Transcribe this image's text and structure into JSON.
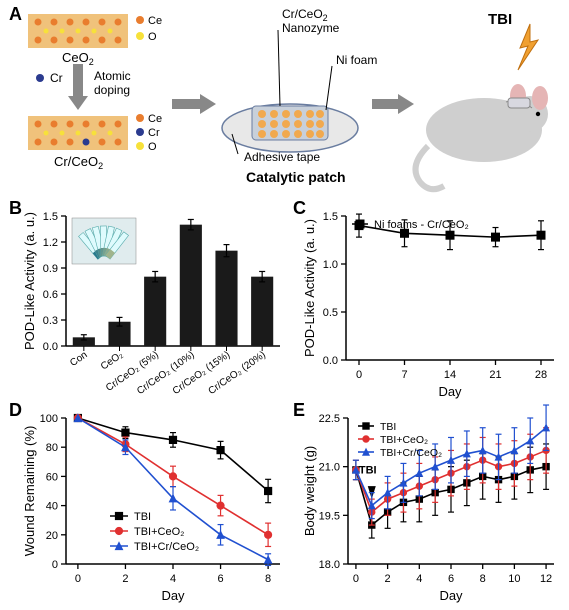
{
  "panelA": {
    "label": "A",
    "schematic": {
      "ceo2_label": "CeO₂",
      "cr_label": "Cr",
      "cr_ceo2_label": "Cr/CeO₂",
      "atomic_doping": "Atomic\ndoping",
      "legend1": "Ce",
      "legend2": "O",
      "legend3": "Ce",
      "legend4": "Cr",
      "legend5": "O",
      "patch_labels": {
        "nanozyme": "Cr/CeO₂\nNanozyme",
        "nifoam": "Ni foam",
        "tape": "Adhesive tape",
        "caption": "Catalytic patch"
      },
      "tbi": "TBI",
      "colors": {
        "ce": "#e97d2e",
        "o": "#f7e13a",
        "cr": "#2b3b8f",
        "lattice_bg": "#f0c27b",
        "lattice_fill": "#dd8b3c",
        "nifoam": "#c8d0da",
        "nanozyme_fill": "#f1a94e",
        "tape": "#e8e8e8",
        "mouse": "#cfcfcf",
        "mouse_patch": "#d8d8e0",
        "lightning": "#f0a030"
      }
    }
  },
  "panelB": {
    "label": "B",
    "type": "bar",
    "ylabel": "POD-Like Activity (a. u.)",
    "xticks_plain": [
      "Con",
      "CeO₂",
      "Cr/CeO₂ (5%)",
      "Cr/CeO₂ (10%)",
      "Cr/CeO₂ (15%)",
      "Cr/CeO₂ (20%)"
    ],
    "values": [
      0.1,
      0.28,
      0.8,
      1.4,
      1.1,
      0.8
    ],
    "errors": [
      0.03,
      0.05,
      0.06,
      0.06,
      0.07,
      0.06
    ],
    "ylim": [
      0.0,
      1.5
    ],
    "yticks": [
      0.0,
      0.3,
      0.6,
      0.9,
      1.2,
      1.5
    ],
    "bar_color": "#1a1a1a",
    "bar_width": 0.62,
    "inset_caption": ""
  },
  "panelC": {
    "label": "C",
    "type": "line",
    "ylabel": "POD-Like Activity (a. u.)",
    "xlabel": "Day",
    "legend": "Ni foams - Cr/CeO₂",
    "x": [
      0,
      7,
      14,
      21,
      28
    ],
    "y": [
      1.4,
      1.32,
      1.3,
      1.28,
      1.3
    ],
    "err": [
      0.12,
      0.14,
      0.15,
      0.1,
      0.15
    ],
    "ylim": [
      0.0,
      1.5
    ],
    "yticks": [
      0.0,
      0.5,
      1.0,
      1.5
    ],
    "xlim": [
      -2,
      30
    ],
    "xticks": [
      0,
      7,
      14,
      21,
      28
    ],
    "line_color": "#000000",
    "marker": "square"
  },
  "panelD": {
    "label": "D",
    "type": "line",
    "ylabel": "Wound Remaining (%)",
    "xlabel": "Day",
    "x": [
      0,
      2,
      4,
      6,
      8
    ],
    "series": [
      {
        "name": "TBI",
        "color": "#000000",
        "marker": "square",
        "y": [
          100,
          90,
          85,
          78,
          50
        ],
        "err": [
          0,
          4,
          5,
          6,
          8
        ]
      },
      {
        "name": "TBI+CeO₂",
        "color": "#e03030",
        "marker": "circle",
        "y": [
          100,
          82,
          60,
          40,
          20
        ],
        "err": [
          0,
          5,
          7,
          7,
          8
        ]
      },
      {
        "name": "TBI+Cr/CeO₂",
        "color": "#2050d0",
        "marker": "triangle",
        "y": [
          100,
          80,
          45,
          20,
          3
        ],
        "err": [
          0,
          5,
          8,
          7,
          4
        ]
      }
    ],
    "ylim": [
      0,
      100
    ],
    "yticks": [
      0,
      20,
      40,
      60,
      80,
      100
    ],
    "xlim": [
      -0.5,
      8.5
    ],
    "xticks": [
      0,
      2,
      4,
      6,
      8
    ]
  },
  "panelE": {
    "label": "E",
    "type": "line",
    "ylabel": "Body weight (g)",
    "xlabel": "Day",
    "x": [
      0,
      1,
      2,
      3,
      4,
      5,
      6,
      7,
      8,
      9,
      10,
      11,
      12
    ],
    "tbi_marker_x": 1,
    "tbi_marker_label": "TBI",
    "series": [
      {
        "name": "TBI",
        "color": "#000000",
        "marker": "square",
        "y": [
          20.9,
          19.2,
          19.6,
          19.9,
          20.0,
          20.2,
          20.3,
          20.5,
          20.7,
          20.6,
          20.7,
          20.9,
          21.0
        ],
        "err": [
          0.3,
          0.4,
          0.5,
          0.6,
          0.7,
          0.7,
          0.7,
          0.7,
          0.7,
          0.7,
          0.7,
          0.7,
          0.7
        ]
      },
      {
        "name": "TBI+CeO₂",
        "color": "#e03030",
        "marker": "circle",
        "y": [
          20.9,
          19.6,
          20.0,
          20.2,
          20.4,
          20.6,
          20.8,
          21.0,
          21.2,
          21.0,
          21.1,
          21.3,
          21.5
        ],
        "err": [
          0.3,
          0.4,
          0.5,
          0.6,
          0.7,
          0.7,
          0.7,
          0.7,
          0.7,
          0.7,
          0.7,
          0.7,
          0.7
        ]
      },
      {
        "name": "TBI+Cr/CeO₂",
        "color": "#2050d0",
        "marker": "triangle",
        "y": [
          20.9,
          19.8,
          20.2,
          20.5,
          20.8,
          21.0,
          21.2,
          21.4,
          21.5,
          21.3,
          21.5,
          21.8,
          22.2
        ],
        "err": [
          0.3,
          0.4,
          0.5,
          0.6,
          0.7,
          0.7,
          0.7,
          0.7,
          0.7,
          0.7,
          0.7,
          0.7,
          0.7
        ]
      }
    ],
    "ylim": [
      18.0,
      22.5
    ],
    "yticks": [
      18.0,
      19.5,
      21.0,
      22.5
    ],
    "xlim": [
      -0.5,
      12.5
    ],
    "xticks": [
      0,
      2,
      4,
      6,
      8,
      10,
      12
    ]
  },
  "style": {
    "axis_stroke": "#000000",
    "axis_width": 1.5,
    "err_cap": 3
  }
}
